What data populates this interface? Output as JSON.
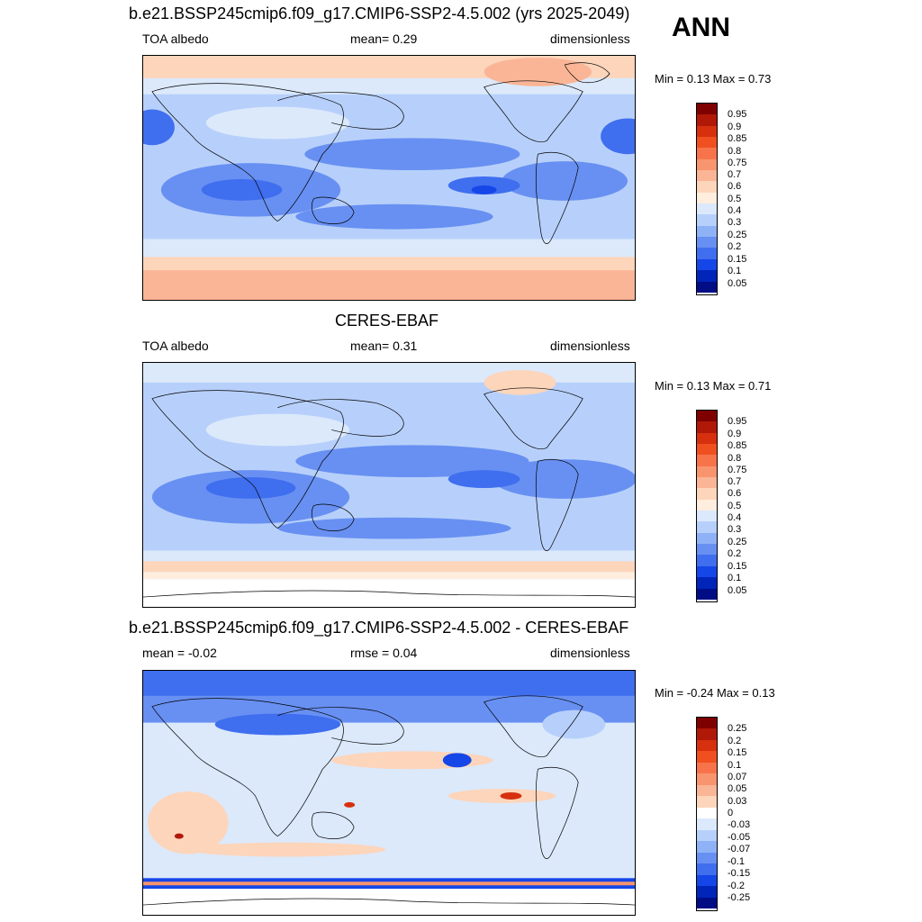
{
  "season": "ANN",
  "panels": [
    {
      "title": "b.e21.BSSP245cmip6.f09_g17.CMIP6-SSP2-4.5.002 (yrs 2025-2049)",
      "left_label": "TOA albedo",
      "center_label": "mean=   0.29",
      "right_label": "dimensionless",
      "minmax": "Min =   0.13 Max =   0.73",
      "colorbar": {
        "labels": [
          "0.95",
          "0.9",
          "0.85",
          "0.8",
          "0.75",
          "0.7",
          "0.6",
          "0.5",
          "0.4",
          "0.3",
          "0.25",
          "0.2",
          "0.15",
          "0.1",
          "0.05"
        ],
        "colors": [
          "#7f0000",
          "#b01808",
          "#d6300e",
          "#f05020",
          "#f7744a",
          "#f8956e",
          "#fab596",
          "#fdd5bb",
          "#ffeedd",
          "#dbe9fb",
          "#b7d0fb",
          "#8fb2f7",
          "#6890f2",
          "#3f6eef",
          "#1546e8",
          "#0025b8",
          "#000d85"
        ]
      }
    },
    {
      "title": "CERES-EBAF",
      "left_label": "TOA albedo",
      "center_label": "mean=   0.31",
      "right_label": "dimensionless",
      "minmax": "Min =   0.13 Max =   0.71",
      "colorbar": {
        "labels": [
          "0.95",
          "0.9",
          "0.85",
          "0.8",
          "0.75",
          "0.7",
          "0.6",
          "0.5",
          "0.4",
          "0.3",
          "0.25",
          "0.2",
          "0.15",
          "0.1",
          "0.05"
        ],
        "colors": [
          "#7f0000",
          "#b01808",
          "#d6300e",
          "#f05020",
          "#f7744a",
          "#f8956e",
          "#fab596",
          "#fdd5bb",
          "#ffeedd",
          "#dbe9fb",
          "#b7d0fb",
          "#8fb2f7",
          "#6890f2",
          "#3f6eef",
          "#1546e8",
          "#0025b8",
          "#000d85"
        ]
      }
    },
    {
      "title": "b.e21.BSSP245cmip6.f09_g17.CMIP6-SSP2-4.5.002 - CERES-EBAF",
      "left_label": "mean =   -0.02",
      "center_label": "rmse =    0.04",
      "right_label": "dimensionless",
      "minmax": "Min =  -0.24 Max =   0.13",
      "colorbar": {
        "labels": [
          "0.25",
          "0.2",
          "0.15",
          "0.1",
          "0.07",
          "0.05",
          "0.03",
          "0",
          "-0.03",
          "-0.05",
          "-0.07",
          "-0.1",
          "-0.15",
          "-0.2",
          "-0.25"
        ],
        "colors": [
          "#7f0000",
          "#b01808",
          "#d6300e",
          "#f05020",
          "#f7744a",
          "#f8956e",
          "#fab596",
          "#fdd5bb",
          "#ffffff",
          "#dbe9fb",
          "#b7d0fb",
          "#8fb2f7",
          "#6890f2",
          "#3f6eef",
          "#1546e8",
          "#0025b8",
          "#000d85"
        ]
      }
    }
  ]
}
